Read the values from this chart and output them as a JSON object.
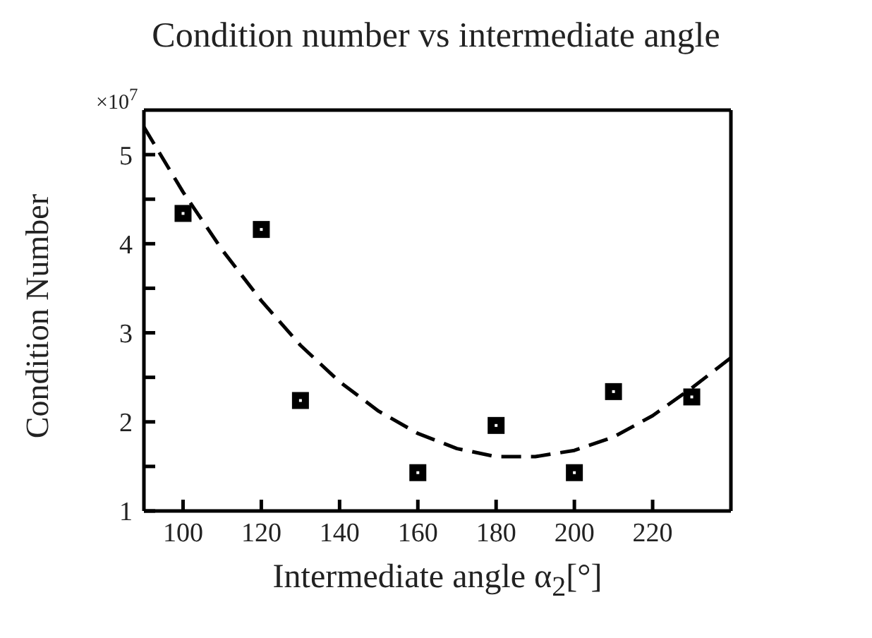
{
  "chart_data": {
    "type": "scatter",
    "title": "Condition number vs intermediate angle",
    "xlabel": "Intermediate angle α$_{2}$[°]",
    "ylabel": "Condition Number",
    "annotations": [
      "×10$^{7}$"
    ],
    "xlim": [
      90,
      240
    ],
    "xticks": [
      100,
      120,
      140,
      160,
      180,
      200,
      220
    ],
    "ylim": [
      1,
      5.5
    ],
    "yticks": [
      1,
      {
        "value": 1.5,
        "label": null
      },
      2,
      {
        "value": 2.5,
        "label": null
      },
      3,
      {
        "value": 3.5,
        "label": null
      },
      4,
      {
        "value": 4.5,
        "label": null
      },
      5
    ],
    "series": [
      {
        "color": "#000000",
        "marker": "square",
        "x": [
          100,
          120,
          130,
          160,
          180,
          200,
          210,
          230
        ],
        "values": [
          4.34,
          4.16,
          2.24,
          1.43,
          1.96,
          1.43,
          2.34,
          2.28
        ]
      },
      {
        "type": "line",
        "color": "#000000",
        "marker": "none",
        "line_style": "dashed",
        "x": [
          90,
          100,
          110,
          120,
          130,
          140,
          150,
          160,
          170,
          180,
          190,
          200,
          210,
          220,
          230,
          240
        ],
        "values": [
          5.31,
          4.58,
          3.93,
          3.36,
          2.86,
          2.45,
          2.12,
          1.87,
          1.7,
          1.61,
          1.61,
          1.68,
          1.83,
          2.07,
          2.38,
          2.72
        ]
      }
    ]
  }
}
